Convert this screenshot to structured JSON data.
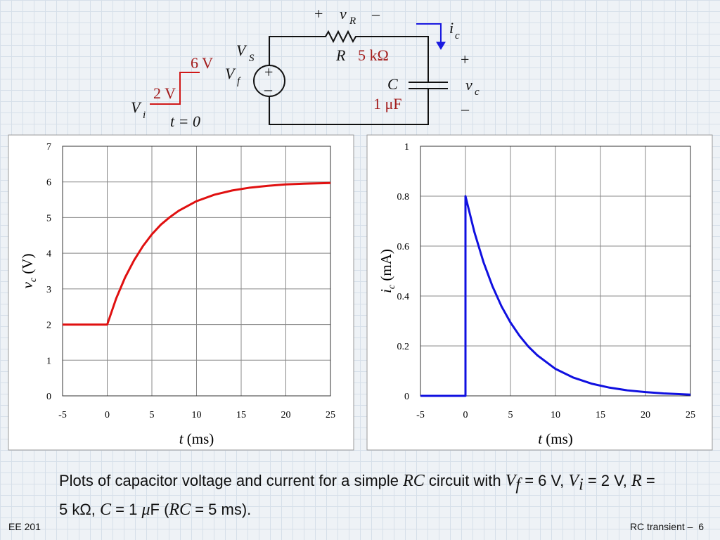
{
  "circuit": {
    "vr_plus": "+",
    "vr_symbol": "v",
    "vr_sub": "R",
    "vr_minus": "–",
    "ic_symbol": "i",
    "ic_sub": "c",
    "vs_symbol": "V",
    "vs_sub": "S",
    "vf_value": "6 V",
    "vf_symbol": "V",
    "vf_sub": "f",
    "vi_value": "2 V",
    "vi_symbol": "V",
    "vi_sub": "i",
    "t0": "t = 0",
    "src_plus": "+",
    "src_minus": "–",
    "r_symbol": "R",
    "r_value": "5 kΩ",
    "c_symbol": "C",
    "c_value": "1 μF",
    "vc_plus": "+",
    "vc_symbol": "v",
    "vc_sub": "c",
    "vc_minus": "–"
  },
  "chart_data": [
    {
      "type": "line",
      "color": "#e01010",
      "x": [
        -5,
        0,
        1,
        2,
        3,
        4,
        5,
        6,
        7,
        8,
        10,
        12,
        14,
        16,
        18,
        20,
        22,
        25
      ],
      "values": [
        2,
        2,
        2.73,
        3.32,
        3.8,
        4.2,
        4.53,
        4.8,
        5.01,
        5.19,
        5.46,
        5.64,
        5.76,
        5.84,
        5.89,
        5.93,
        5.95,
        5.97
      ],
      "xlim": [
        -5,
        25
      ],
      "xticks": [
        -5,
        0,
        5,
        10,
        15,
        20,
        25
      ],
      "ylim": [
        0,
        7
      ],
      "yticks": [
        0,
        1,
        2,
        3,
        4,
        5,
        6,
        7
      ],
      "xlabel": [
        "t",
        " (ms)"
      ],
      "ylabel": [
        "v",
        "c",
        " (V)"
      ],
      "grid": true
    },
    {
      "type": "line",
      "color": "#1010e0",
      "x": [
        -5,
        0,
        0,
        1,
        2,
        3,
        4,
        5,
        6,
        7,
        8,
        10,
        12,
        14,
        16,
        18,
        20,
        22,
        25
      ],
      "values": [
        0,
        0,
        0.8,
        0.655,
        0.536,
        0.439,
        0.359,
        0.294,
        0.241,
        0.197,
        0.162,
        0.108,
        0.073,
        0.049,
        0.033,
        0.022,
        0.015,
        0.01,
        0.005
      ],
      "xlim": [
        -5,
        25
      ],
      "xticks": [
        -5,
        0,
        5,
        10,
        15,
        20,
        25
      ],
      "ylim": [
        0,
        1
      ],
      "yticks": [
        0,
        0.2,
        0.4,
        0.6,
        0.8,
        1
      ],
      "xlabel": [
        "t",
        " (ms)"
      ],
      "ylabel": [
        "i",
        "c",
        " (mA)"
      ],
      "grid": true
    }
  ],
  "caption": [
    "Plots of capacitor voltage and current for a simple ",
    "RC",
    " circuit with ",
    "V",
    "f",
    " = 6 V, ",
    "V",
    "i",
    " = 2 V, ",
    "R",
    " = 5 kΩ, ",
    "C",
    " = 1 ",
    "μ",
    "F (",
    "RC",
    " = 5 ms)."
  ],
  "footer": {
    "course": "EE 201",
    "topic": "RC transient –",
    "page": "6"
  }
}
